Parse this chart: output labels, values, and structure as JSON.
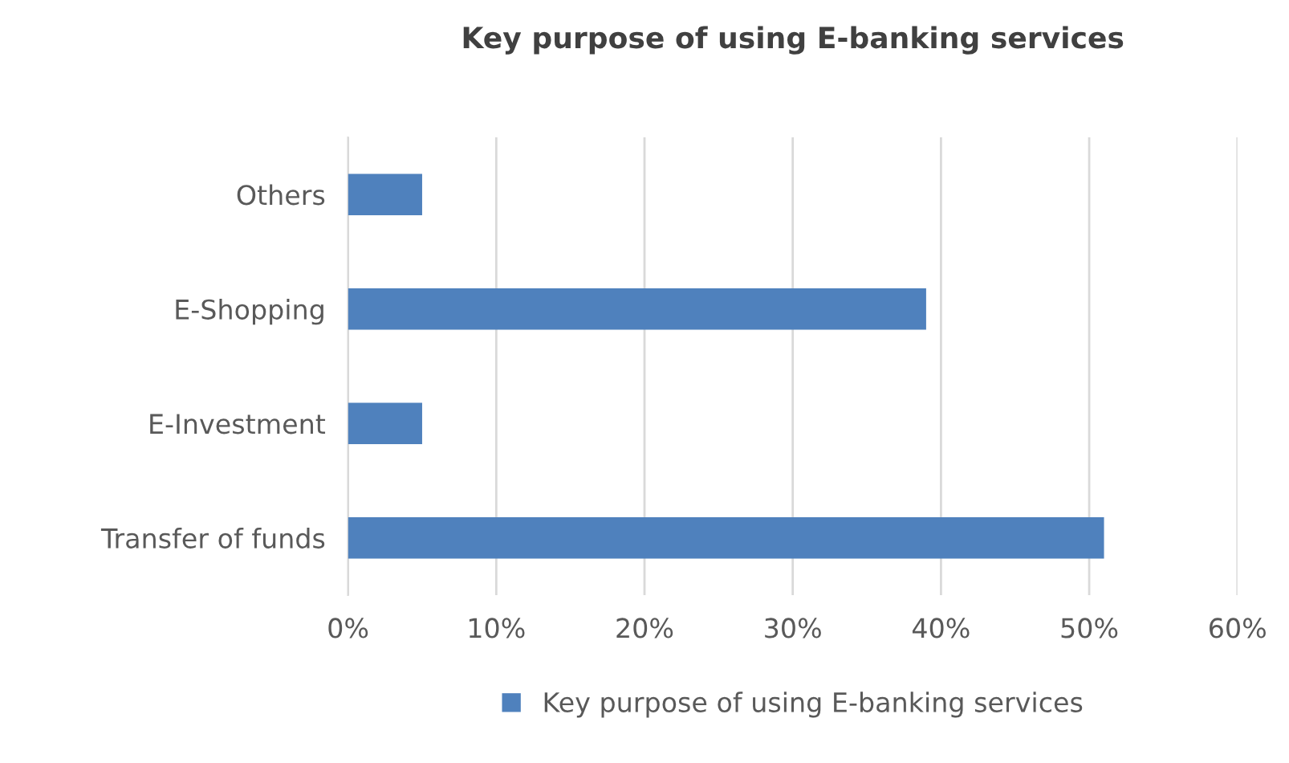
{
  "chart_data": {
    "type": "bar",
    "orientation": "horizontal",
    "title": "Key purpose of using E-banking services",
    "categories": [
      "Others",
      "E-Shopping",
      "E-Investment",
      "Transfer of funds"
    ],
    "series": [
      {
        "name": "Key purpose of using E-banking services",
        "color": "#4f81bd",
        "values": [
          5,
          39,
          5,
          51
        ]
      }
    ],
    "xlim": [
      0,
      60
    ],
    "xticks": [
      {
        "value": 0,
        "label": "0%"
      },
      {
        "value": 10,
        "label": "10%"
      },
      {
        "value": 20,
        "label": "20%"
      },
      {
        "value": 30,
        "label": "30%"
      },
      {
        "value": 40,
        "label": "40%"
      },
      {
        "value": 50,
        "label": "50%"
      },
      {
        "value": 60,
        "label": "60%"
      }
    ],
    "grid": "x",
    "legend": "bottom"
  }
}
